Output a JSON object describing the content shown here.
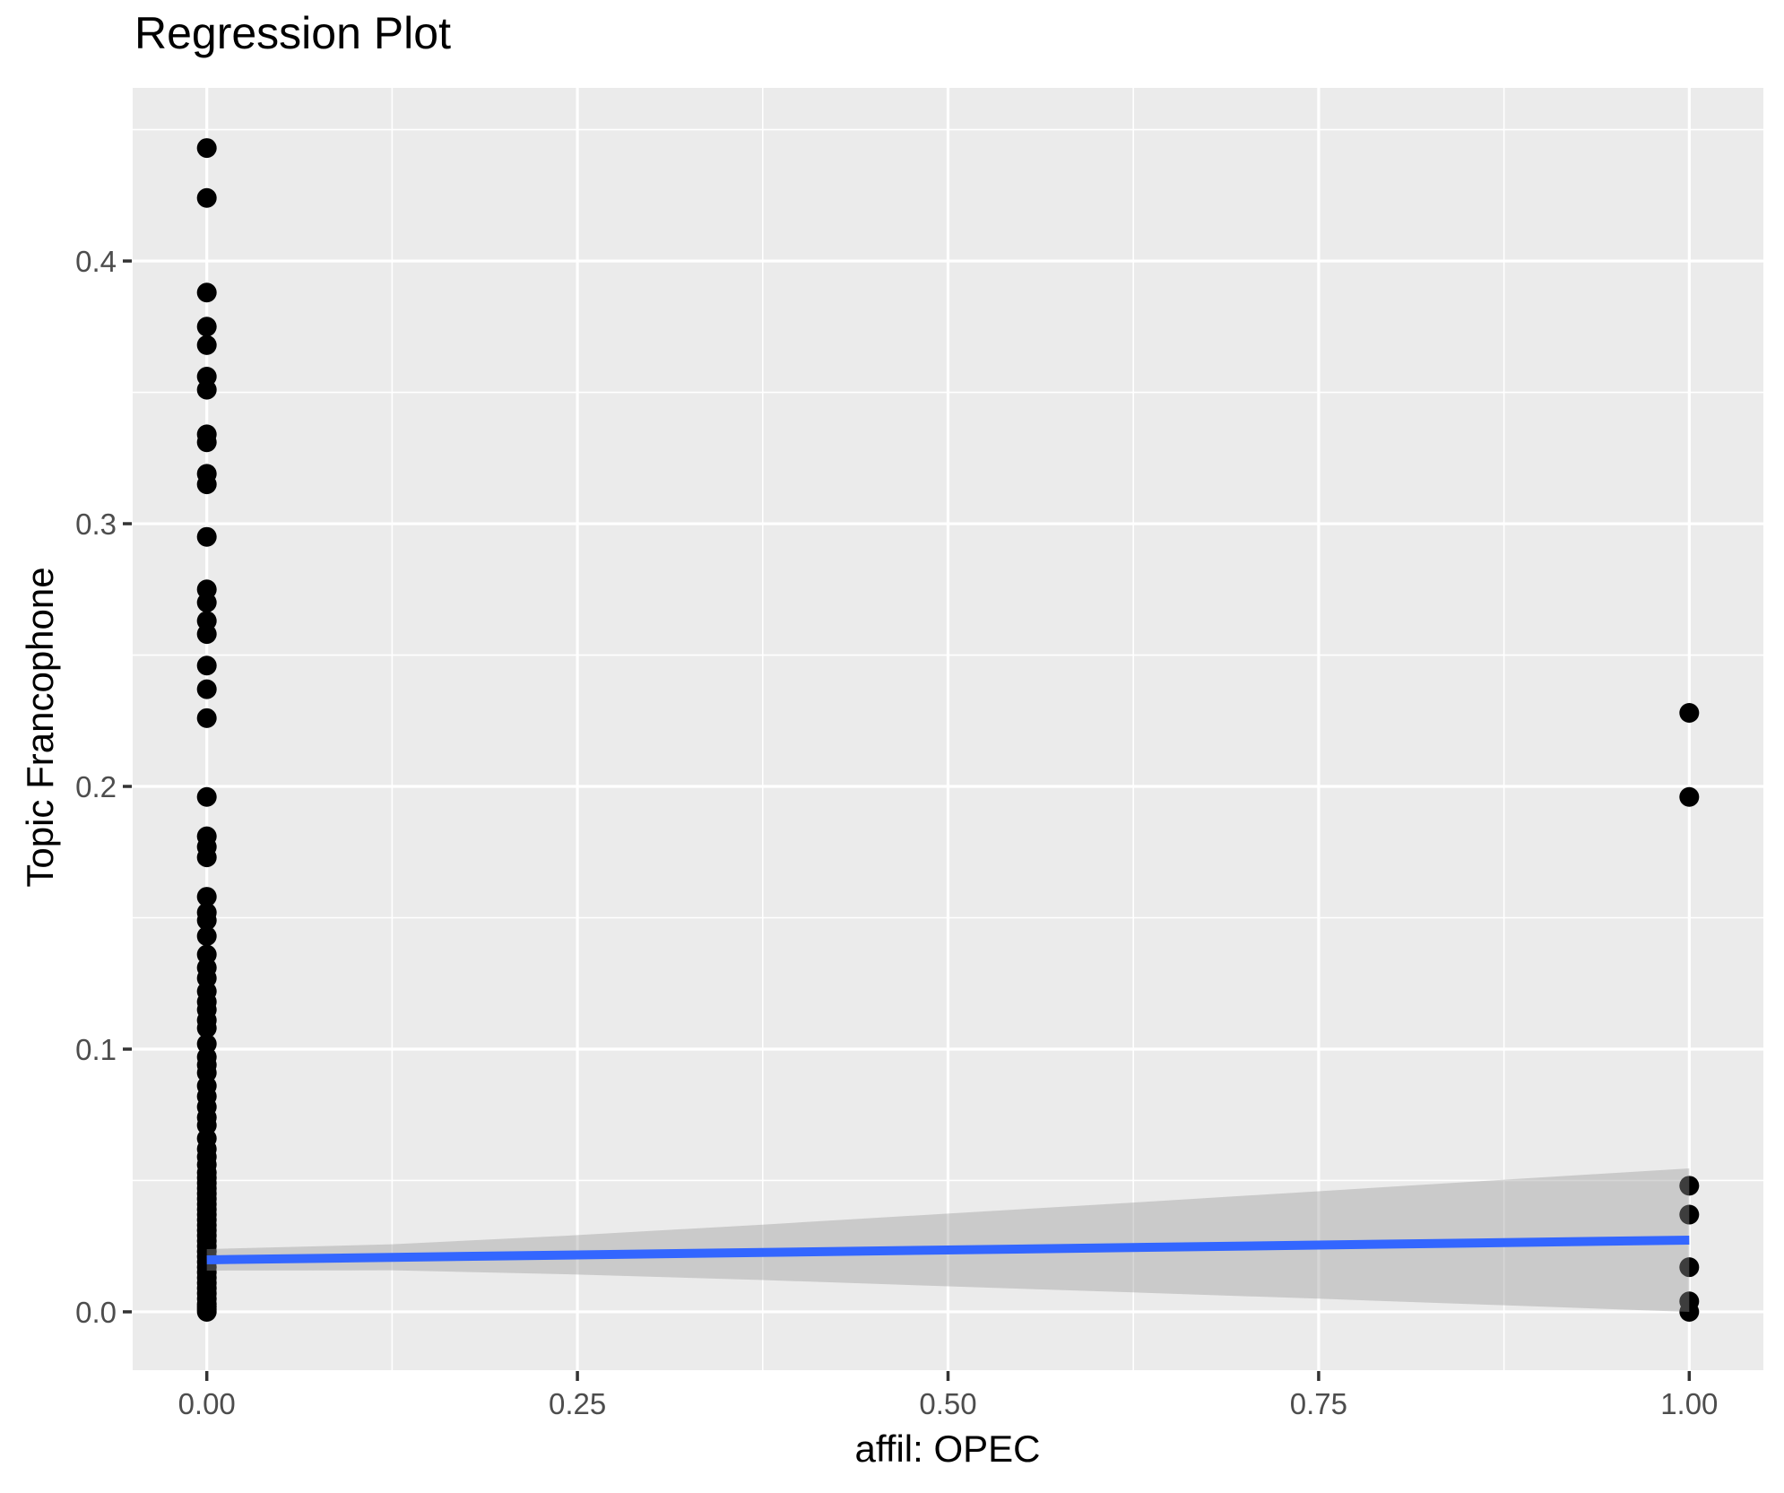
{
  "chart_data": {
    "type": "scatter",
    "title": "Regression Plot",
    "xlabel": "affil: OPEC",
    "ylabel": "Topic Francophone",
    "xlim": [
      -0.05,
      1.05
    ],
    "ylim": [
      -0.0222,
      0.4659
    ],
    "grid": "white major and minor gridlines on gray panel",
    "legend": "none",
    "x_major_ticks": [
      0.0,
      0.25,
      0.5,
      0.75,
      1.0
    ],
    "x_tick_labels": [
      "0.00",
      "0.25",
      "0.50",
      "0.75",
      "1.00"
    ],
    "x_minor_ticks": [
      0.125,
      0.375,
      0.625,
      0.875
    ],
    "y_major_ticks": [
      0.0,
      0.1,
      0.2,
      0.3,
      0.4
    ],
    "y_tick_labels": [
      "0.0",
      "0.1",
      "0.2",
      "0.3",
      "0.4"
    ],
    "y_minor_ticks": [
      0.05,
      0.15,
      0.25,
      0.35,
      0.45
    ],
    "series": [
      {
        "name": "points-at-x-0",
        "x": 0,
        "y": [
          0.443,
          0.424,
          0.388,
          0.375,
          0.368,
          0.356,
          0.351,
          0.334,
          0.331,
          0.319,
          0.315,
          0.295,
          0.275,
          0.27,
          0.263,
          0.258,
          0.246,
          0.237,
          0.226,
          0.196,
          0.181,
          0.177,
          0.173,
          0.158,
          0.152,
          0.149,
          0.143,
          0.136,
          0.131,
          0.127,
          0.122,
          0.118,
          0.115,
          0.111,
          0.108,
          0.102,
          0.097,
          0.094,
          0.091,
          0.086,
          0.082,
          0.078,
          0.074,
          0.071,
          0.066,
          0.062,
          0.059,
          0.056,
          0.053,
          0.051,
          0.049,
          0.047,
          0.045,
          0.043,
          0.041,
          0.039,
          0.037,
          0.035,
          0.033,
          0.031,
          0.029,
          0.027,
          0.025,
          0.023,
          0.021,
          0.019,
          0.017,
          0.015,
          0.013,
          0.011,
          0.009,
          0.007,
          0.005,
          0.003,
          0.002,
          0.001,
          0.0
        ]
      },
      {
        "name": "points-at-x-1",
        "x": 1,
        "y": [
          0.228,
          0.196,
          0.048,
          0.037,
          0.017,
          0.004,
          0.0
        ]
      }
    ],
    "regression_line": {
      "x": [
        0,
        1
      ],
      "y": [
        0.0198,
        0.0273
      ]
    },
    "confidence_band": {
      "x": [
        0.0,
        0.125,
        0.25,
        0.375,
        0.5,
        0.625,
        0.75,
        0.875,
        1.0
      ],
      "upper": [
        0.0239,
        0.0257,
        0.0292,
        0.0332,
        0.0374,
        0.0416,
        0.0459,
        0.0503,
        0.0546
      ],
      "lower": [
        0.0157,
        0.0158,
        0.0142,
        0.0121,
        0.0097,
        0.0074,
        0.005,
        0.0025,
        0.0
      ]
    },
    "colors": {
      "background": "#FFFFFF",
      "panel_background": "#EBEBEB",
      "grid_line": "#FFFFFF",
      "point": "#000000",
      "regression_line": "#3366FF",
      "confidence_band": "#999999",
      "confidence_band_opacity": 0.4,
      "tick_label": "#4D4D4D",
      "tick_mark": "#333333",
      "text": "#000000"
    }
  }
}
